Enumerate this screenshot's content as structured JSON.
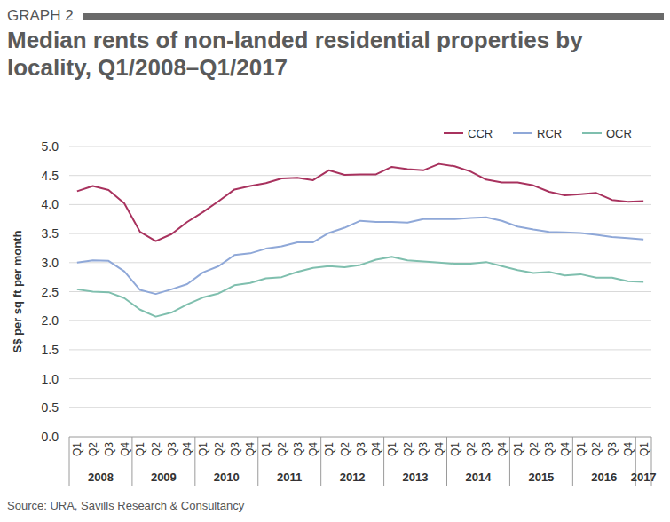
{
  "chart_data": {
    "type": "line",
    "figure_label": "GRAPH 2",
    "title": "Median rents of non-landed residential properties by locality, Q1/2008–Q1/2017",
    "y_label": "S$ per sq ft per month",
    "source": "Source: URA, Savills Research & Consultancy",
    "categories": [
      "Q1",
      "Q2",
      "Q3",
      "Q4",
      "Q1",
      "Q2",
      "Q3",
      "Q4",
      "Q1",
      "Q2",
      "Q3",
      "Q4",
      "Q1",
      "Q2",
      "Q3",
      "Q4",
      "Q1",
      "Q2",
      "Q3",
      "Q4",
      "Q1",
      "Q2",
      "Q3",
      "Q4",
      "Q1",
      "Q2",
      "Q3",
      "Q4",
      "Q1",
      "Q2",
      "Q3",
      "Q4",
      "Q1",
      "Q2",
      "Q3",
      "Q4",
      "Q1"
    ],
    "category_groups": [
      "2008",
      "2009",
      "2010",
      "2011",
      "2012",
      "2013",
      "2014",
      "2015",
      "2016",
      "2017"
    ],
    "series": [
      {
        "name": "CCR",
        "color": "#a8325e",
        "values": [
          4.23,
          4.32,
          4.25,
          4.02,
          3.53,
          3.37,
          3.49,
          3.7,
          3.87,
          4.06,
          4.26,
          4.32,
          4.37,
          4.45,
          4.46,
          4.42,
          4.59,
          4.51,
          4.52,
          4.52,
          4.65,
          4.61,
          4.59,
          4.7,
          4.66,
          4.57,
          4.43,
          4.38,
          4.38,
          4.33,
          4.22,
          4.16,
          4.18,
          4.2,
          4.08,
          4.05,
          4.06
        ]
      },
      {
        "name": "RCR",
        "color": "#8fa8d8",
        "values": [
          3.0,
          3.04,
          3.03,
          2.85,
          2.53,
          2.46,
          2.54,
          2.63,
          2.83,
          2.94,
          3.13,
          3.16,
          3.24,
          3.28,
          3.35,
          3.35,
          3.51,
          3.6,
          3.72,
          3.7,
          3.7,
          3.69,
          3.75,
          3.75,
          3.75,
          3.77,
          3.78,
          3.72,
          3.62,
          3.57,
          3.53,
          3.52,
          3.51,
          3.48,
          3.44,
          3.42,
          3.4
        ]
      },
      {
        "name": "OCR",
        "color": "#7fbfae",
        "values": [
          2.54,
          2.5,
          2.49,
          2.39,
          2.19,
          2.07,
          2.14,
          2.28,
          2.4,
          2.47,
          2.61,
          2.65,
          2.73,
          2.75,
          2.84,
          2.91,
          2.94,
          2.92,
          2.96,
          3.05,
          3.1,
          3.04,
          3.02,
          3.0,
          2.98,
          2.98,
          3.01,
          2.94,
          2.87,
          2.82,
          2.84,
          2.78,
          2.8,
          2.74,
          2.74,
          2.68,
          2.67
        ]
      }
    ],
    "ylim": [
      0,
      5
    ],
    "yticks": [
      {
        "value": 0,
        "label": "0.0"
      },
      {
        "value": 0.5,
        "label": "0.5"
      },
      {
        "value": 1,
        "label": "1.0"
      },
      {
        "value": 1.5,
        "label": "1.5"
      },
      {
        "value": 2,
        "label": "2.0"
      },
      {
        "value": 2.5,
        "label": "2.5"
      },
      {
        "value": 3,
        "label": "3.0"
      },
      {
        "value": 3.5,
        "label": "3.5"
      },
      {
        "value": 4,
        "label": "4.0"
      },
      {
        "value": 4.5,
        "label": "4.5"
      },
      {
        "value": 5,
        "label": "5.0"
      }
    ],
    "grid": true,
    "legend": "top-right"
  }
}
